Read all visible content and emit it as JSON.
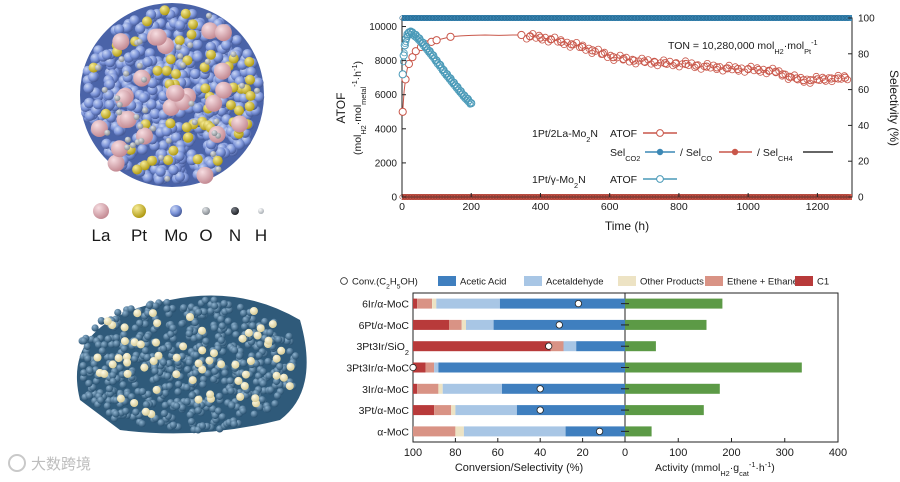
{
  "legend_elements": {
    "labels": [
      "La",
      "Pt",
      "Mo",
      "O",
      "N",
      "H"
    ],
    "colors": [
      "#d9a5ad",
      "#d6c227",
      "#7b93d8",
      "#9aa0a6",
      "#3a3d44",
      "#c8cdd2"
    ]
  },
  "watermark": "大数跨境",
  "chart_data": [
    {
      "type": "line",
      "xlabel": "Time (h)",
      "ylabel_main": "ATOF",
      "ylabel_unit": "(mol_H2·mol_metal^-1·h^-1)",
      "y2label": "Selectivity (%)",
      "xlim": [
        0,
        1300
      ],
      "ylim": [
        0,
        10500
      ],
      "y2lim": [
        0,
        100
      ],
      "xticks": [
        "0",
        "200",
        "400",
        "600",
        "800",
        "1000",
        "1200"
      ],
      "xtick_values": [
        0,
        200,
        400,
        600,
        800,
        1000,
        1200
      ],
      "yticks": [
        "0",
        "2000",
        "4000",
        "6000",
        "8000",
        "10000"
      ],
      "ytick_values": [
        0,
        2000,
        4000,
        6000,
        8000,
        10000
      ],
      "y2ticks": [
        "0",
        "20",
        "40",
        "60",
        "80",
        "100"
      ],
      "y2tick_values": [
        0,
        20,
        40,
        60,
        80,
        100
      ],
      "annotation": "TON = 10,280,000 mol_H2·mol_Pt^-1",
      "legend": {
        "catalyst1": "1Pt/2La-Mo2N",
        "catalyst2": "1Pt/γ-Mo2N",
        "atof": "ATOF",
        "sel_co2": "Sel_CO2",
        "sel_co": "/ Sel_CO",
        "sel_ch4": "/ Sel_CH4"
      },
      "colors": {
        "pt_la": "#c9574a",
        "pt_gamma": "#4a9ab8",
        "co2": "#3c88b5",
        "co": "#c9574a",
        "ch4": "#333333"
      },
      "series": [
        {
          "name": "1Pt/2La-Mo2N ATOF",
          "points": [
            [
              2,
              5000
            ],
            [
              6,
              6200
            ],
            [
              10,
              6900
            ],
            [
              15,
              7500
            ],
            [
              20,
              7800
            ],
            [
              30,
              8200
            ],
            [
              40,
              8550
            ],
            [
              55,
              8800
            ],
            [
              70,
              8950
            ],
            [
              85,
              9100
            ],
            [
              100,
              9200
            ],
            [
              120,
              9300
            ],
            [
              140,
              9400
            ],
            [
              170,
              9450
            ],
            [
              200,
              9480
            ],
            [
              240,
              9500
            ],
            [
              280,
              9480
            ],
            [
              320,
              9500
            ],
            [
              345,
              9500
            ],
            [
              370,
              9420
            ],
            [
              400,
              9350
            ],
            [
              430,
              9250
            ],
            [
              460,
              9100
            ],
            [
              490,
              8950
            ],
            [
              520,
              8800
            ],
            [
              550,
              8600
            ],
            [
              580,
              8400
            ],
            [
              610,
              8200
            ],
            [
              640,
              8100
            ],
            [
              670,
              8000
            ],
            [
              700,
              7950
            ],
            [
              730,
              7900
            ],
            [
              760,
              7850
            ],
            [
              790,
              7820
            ],
            [
              820,
              7800
            ],
            [
              850,
              7700
            ],
            [
              880,
              7650
            ],
            [
              910,
              7600
            ],
            [
              940,
              7550
            ],
            [
              970,
              7500
            ],
            [
              1000,
              7500
            ],
            [
              1030,
              7450
            ],
            [
              1060,
              7400
            ],
            [
              1080,
              7350
            ],
            [
              1100,
              7200
            ],
            [
              1120,
              7050
            ],
            [
              1140,
              6950
            ],
            [
              1160,
              6850
            ],
            [
              1180,
              6850
            ],
            [
              1200,
              6900
            ],
            [
              1220,
              6900
            ],
            [
              1240,
              6950
            ],
            [
              1260,
              6950
            ],
            [
              1280,
              7000
            ]
          ],
          "markers_at": [
            2,
            10,
            20,
            30,
            40,
            55,
            70,
            85,
            100,
            140,
            345,
            370,
            400,
            430,
            460,
            490,
            520,
            550,
            580,
            610,
            640,
            670,
            700,
            730,
            760,
            790,
            820,
            850,
            880,
            910,
            940,
            970,
            1000,
            1030,
            1060,
            1080,
            1100,
            1120,
            1140,
            1160,
            1180,
            1200,
            1220,
            1240,
            1260,
            1280
          ]
        },
        {
          "name": "1Pt/γ-Mo2N ATOF",
          "points": [
            [
              2,
              7200
            ],
            [
              5,
              8300
            ],
            [
              8,
              8900
            ],
            [
              12,
              9300
            ],
            [
              16,
              9550
            ],
            [
              20,
              9650
            ],
            [
              25,
              9700
            ],
            [
              30,
              9650
            ],
            [
              40,
              9500
            ],
            [
              50,
              9300
            ],
            [
              60,
              9050
            ],
            [
              70,
              8800
            ],
            [
              80,
              8550
            ],
            [
              90,
              8300
            ],
            [
              100,
              8000
            ],
            [
              110,
              7750
            ],
            [
              120,
              7450
            ],
            [
              130,
              7200
            ],
            [
              140,
              6950
            ],
            [
              150,
              6700
            ],
            [
              160,
              6450
            ],
            [
              170,
              6200
            ],
            [
              180,
              5950
            ],
            [
              190,
              5750
            ],
            [
              200,
              5500
            ]
          ]
        },
        {
          "name": "Sel_CO2",
          "points": [
            [
              0,
              100
            ],
            [
              1290,
              100
            ]
          ]
        },
        {
          "name": "Sel_CO",
          "points": [
            [
              0,
              0
            ],
            [
              1290,
              0
            ]
          ]
        },
        {
          "name": "Sel_CH4",
          "points": [
            [
              0,
              0
            ],
            [
              1290,
              0
            ]
          ]
        }
      ]
    },
    {
      "type": "bar",
      "layout": "horizontal-diverging",
      "categories": [
        "6Ir/α-MoC",
        "6Pt/α-MoC",
        "3Pt3Ir/SiO2",
        "3Pt3Ir/α-MoC",
        "3Ir/α-MoC",
        "3Pt/α-MoC",
        "α-MoC"
      ],
      "left_axis": {
        "xlabel": "Conversion/Selectivity (%)",
        "xlim": [
          100,
          0
        ],
        "xticks": [
          "100",
          "80",
          "60",
          "40",
          "20",
          "0"
        ],
        "xtick_values": [
          100,
          80,
          60,
          40,
          20,
          0
        ]
      },
      "right_axis": {
        "xlabel": "Activity (mmol_H2·g_cat^-1·h^-1)",
        "xlim": [
          0,
          400
        ],
        "xticks": [
          "0",
          "100",
          "200",
          "300",
          "400"
        ],
        "xtick_values": [
          0,
          100,
          200,
          300,
          400
        ]
      },
      "legend": {
        "conversion": "Conv.(C2H5OH)",
        "items": [
          "Acetic Acid",
          "Acetaldehyde",
          "Other Products",
          "Ethene + Ethane",
          "C1"
        ]
      },
      "colors": {
        "Acetic Acid": "#3f7fbf",
        "Acetaldehyde": "#a8c6e5",
        "Other Products": "#ede3c4",
        "Ethene + Ethane": "#d99385",
        "C1": "#b83a3a",
        "Activity": "#5c9a46"
      },
      "selectivity_order": [
        "C1",
        "Ethene + Ethane",
        "Other Products",
        "Acetaldehyde",
        "Acetic Acid"
      ],
      "selectivity": [
        [
          2,
          7,
          2,
          30,
          59
        ],
        [
          17,
          6,
          2,
          13,
          62
        ],
        [
          65,
          6,
          0,
          6,
          23
        ],
        [
          6,
          4,
          0,
          2,
          88
        ],
        [
          2,
          10,
          2,
          28,
          58
        ],
        [
          10,
          8,
          2,
          29,
          51
        ],
        [
          0,
          20,
          4,
          48,
          28
        ]
      ],
      "conversion": [
        22,
        31,
        36,
        100,
        40,
        40,
        12
      ],
      "activity": [
        183,
        153,
        58,
        332,
        178,
        148,
        50
      ]
    }
  ]
}
